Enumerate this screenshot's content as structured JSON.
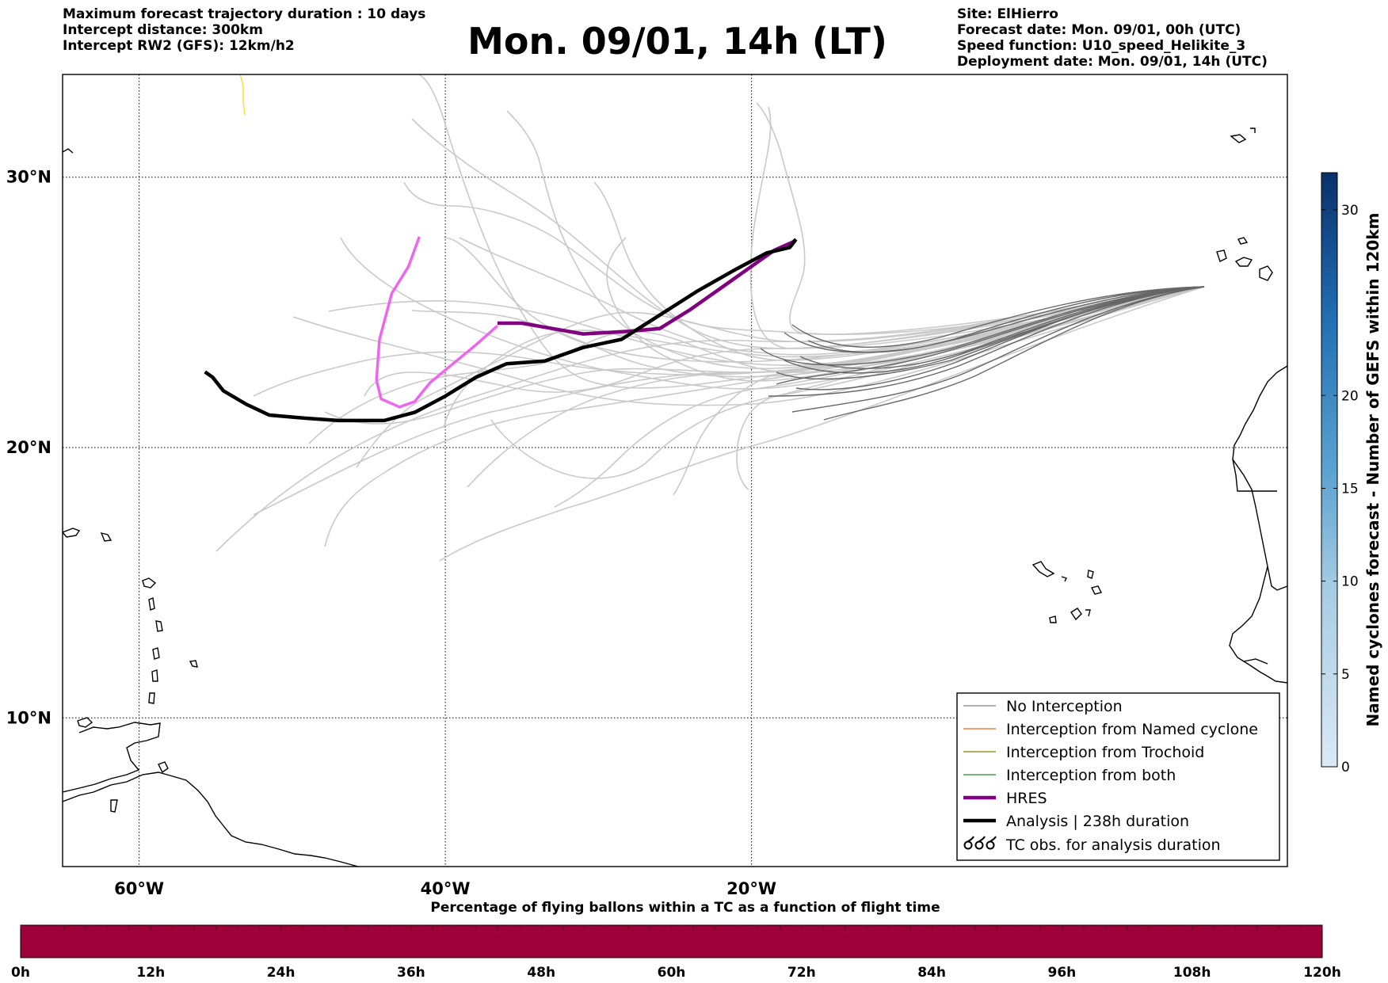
{
  "header": {
    "left": [
      "Maximum forecast trajectory duration : 10 days",
      "Intercept distance: 300km",
      "Intercept RW2 (GFS):  12km/h2"
    ],
    "title": "Mon. 09/01, 14h (LT)",
    "right": [
      "Site: ElHierro",
      "Forecast date: Mon. 09/01, 00h (UTC)",
      "Speed function: U10_speed_Helikite_3",
      "Deployment date: Mon. 09/01, 14h (UTC)"
    ]
  },
  "map": {
    "lon_range": [
      -65,
      15
    ],
    "lat_range": [
      4.5,
      33.8
    ],
    "lon_ticks": [
      {
        "lon": -60,
        "label": "60°W"
      },
      {
        "lon": -40,
        "label": "40°W"
      },
      {
        "lon": -20,
        "label": "20°W"
      }
    ],
    "lat_ticks": [
      {
        "lat": 10,
        "label": "10°N"
      },
      {
        "lat": 20,
        "label": "20°N"
      },
      {
        "lat": 30,
        "label": "30°N"
      }
    ],
    "hres_track": [
      [
        -36.6,
        24.6
      ],
      [
        -35.0,
        24.6
      ],
      [
        -33.0,
        24.4
      ],
      [
        -31.0,
        24.2
      ],
      [
        -28.0,
        24.3
      ],
      [
        -26.0,
        24.4
      ],
      [
        -24.0,
        25.1
      ],
      [
        -22.0,
        25.9
      ],
      [
        -20.0,
        26.7
      ],
      [
        -18.5,
        27.3
      ],
      [
        -17.3,
        27.6
      ],
      [
        -17.1,
        27.7
      ]
    ],
    "analysis_track": [
      [
        -55.7,
        22.8
      ],
      [
        -55.2,
        22.6
      ],
      [
        -54.5,
        22.1
      ],
      [
        -53.0,
        21.6
      ],
      [
        -51.5,
        21.2
      ],
      [
        -49.5,
        21.1
      ],
      [
        -47.0,
        21.0
      ],
      [
        -44.0,
        21.0
      ],
      [
        -42.0,
        21.3
      ],
      [
        -40.0,
        21.9
      ],
      [
        -38.0,
        22.6
      ],
      [
        -36.0,
        23.1
      ],
      [
        -33.5,
        23.2
      ],
      [
        -31.0,
        23.7
      ],
      [
        -28.5,
        24.0
      ],
      [
        -26.0,
        24.9
      ],
      [
        -23.5,
        25.8
      ],
      [
        -21.0,
        26.6
      ],
      [
        -19.0,
        27.2
      ],
      [
        -17.5,
        27.4
      ],
      [
        -17.1,
        27.7
      ]
    ],
    "pink_track": [
      [
        -41.7,
        27.8
      ],
      [
        -42.4,
        26.7
      ],
      [
        -43.5,
        25.7
      ],
      [
        -44.3,
        24.0
      ],
      [
        -44.5,
        22.5
      ],
      [
        -44.2,
        21.8
      ],
      [
        -43.0,
        21.5
      ],
      [
        -42.0,
        21.7
      ],
      [
        -41.0,
        22.4
      ],
      [
        -39.5,
        23.1
      ],
      [
        -38.0,
        23.8
      ],
      [
        -36.6,
        24.5
      ]
    ],
    "yellow_track": [
      [
        -53.4,
        33.8
      ],
      [
        -53.2,
        33.4
      ],
      [
        -53.2,
        32.8
      ],
      [
        -53.1,
        32.3
      ]
    ]
  },
  "colors": {
    "hres": "#800080",
    "analysis": "#000000",
    "pink_track": "#ee66ee",
    "no_interception": "#808080",
    "named_cyclone": "#f26522",
    "trochoid": "#808000",
    "both": "#228b22",
    "flight_bar": "#9e003a",
    "colorbar_low": "#dbe9f6",
    "colorbar_high": "#08306b"
  },
  "legend": [
    {
      "label": "No Interception",
      "style": "thin-gray"
    },
    {
      "label": "Interception from Named cyclone",
      "style": "thin-orange"
    },
    {
      "label": "Interception from Trochoid",
      "style": "thin-olive"
    },
    {
      "label": "Interception from both",
      "style": "thin-green"
    },
    {
      "label": "HRES",
      "style": "thick-purple"
    },
    {
      "label": "Analysis | 238h duration",
      "style": "thick-black"
    },
    {
      "label": "TC obs. for analysis duration",
      "style": "cyclone-symbols"
    }
  ],
  "colorbar": {
    "label": "Named cyclones forecast - Number of GEFS within 120km",
    "ticks": [
      0,
      5,
      10,
      15,
      20,
      30
    ],
    "max": 32
  },
  "bottom_bar": {
    "title": "Percentage of flying ballons within a TC as a function of flight time",
    "ticks": [
      "0h",
      "12h",
      "24h",
      "36h",
      "48h",
      "60h",
      "72h",
      "84h",
      "96h",
      "108h",
      "120h"
    ]
  }
}
